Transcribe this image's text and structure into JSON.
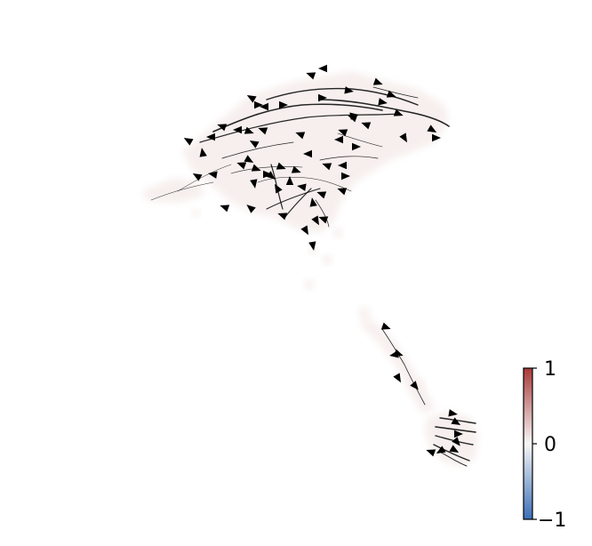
{
  "chart_data": {
    "type": "scatter",
    "title": "",
    "xlabel": "",
    "ylabel": "",
    "axes_visible": false,
    "grid": false,
    "colorbar": {
      "range": [
        -1,
        1
      ],
      "ticks": [
        1,
        0,
        -1
      ],
      "tick_labels": [
        "1",
        "0",
        "−1"
      ],
      "colormap": "blue-white-red",
      "color_low": "#3a6fb8",
      "color_mid": "#f7f7f7",
      "color_high": "#a93a3a",
      "placement": "bottom-right"
    },
    "cell_value_color": "#f6eeec",
    "streamline_color": "#000000"
  }
}
